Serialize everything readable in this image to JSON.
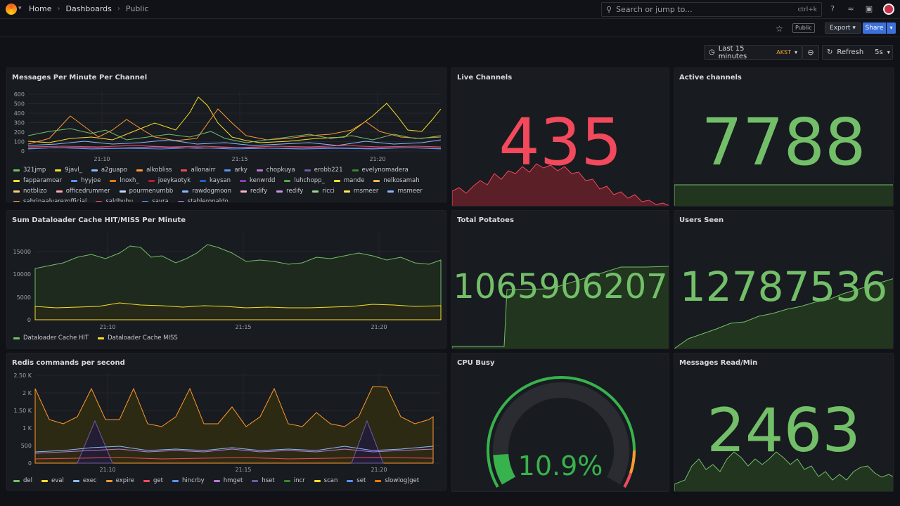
{
  "nav": {
    "crumbs": [
      "Home",
      "Dashboards",
      "Public"
    ],
    "search_placeholder": "Search or jump to...",
    "search_kbd": "ctrl+k"
  },
  "toolbar": {
    "public_tag": "Public",
    "export_label": "Export",
    "share_label": "Share"
  },
  "timepicker": {
    "range": "Last 15 minutes",
    "tz": "AKST",
    "refresh_label": "Refresh",
    "interval": "5s"
  },
  "panels": {
    "messages": {
      "title": "Messages Per Minute Per Channel",
      "y_ticks": [
        "600",
        "500",
        "400",
        "300",
        "200",
        "100",
        "0"
      ],
      "x_ticks": [
        "21:10",
        "21:15",
        "21:20"
      ],
      "legend": [
        {
          "name": "321jmp",
          "color": "#73bf69"
        },
        {
          "name": "9javl_",
          "color": "#fade2a"
        },
        {
          "name": "a2guapo",
          "color": "#8ab8ff"
        },
        {
          "name": "alkobliss",
          "color": "#ff9830"
        },
        {
          "name": "allonairr",
          "color": "#f2495c"
        },
        {
          "name": "arky",
          "color": "#5794f2"
        },
        {
          "name": "chopkuya",
          "color": "#b877d9"
        },
        {
          "name": "erobb221",
          "color": "#705da0"
        },
        {
          "name": "evelynomadera",
          "color": "#37872d"
        },
        {
          "name": "fapparamoar",
          "color": "#fade2a"
        },
        {
          "name": "hyyjoe",
          "color": "#5794f2"
        },
        {
          "name": "lnoxh_",
          "color": "#ff780a"
        },
        {
          "name": "joeykaotyk",
          "color": "#c4162a"
        },
        {
          "name": "kaysan",
          "color": "#1f60c4"
        },
        {
          "name": "kenwrdd",
          "color": "#8f3bb8"
        },
        {
          "name": "luhchopp_",
          "color": "#56a64b"
        },
        {
          "name": "mande",
          "color": "#fade2a"
        },
        {
          "name": "nelkosamah",
          "color": "#ffb357"
        },
        {
          "name": "notblizo",
          "color": "#ffcb7d"
        },
        {
          "name": "officedrummer",
          "color": "#ffa6b0"
        },
        {
          "name": "pourmenumbb",
          "color": "#c0d8ff"
        },
        {
          "name": "rawdogmoon",
          "color": "#8ab8ff"
        },
        {
          "name": "redify",
          "color": "#f7b5d0"
        },
        {
          "name": "redify",
          "color": "#ca95e5"
        },
        {
          "name": "ricci",
          "color": "#96d98d"
        },
        {
          "name": "rnsmeer",
          "color": "#ffee52"
        },
        {
          "name": "rnsmeer",
          "color": "#8ab8ff"
        },
        {
          "name": "sabrinaalvarezofficial",
          "color": "#ff9830"
        },
        {
          "name": "saldbubu",
          "color": "#f2495c"
        },
        {
          "name": "sayra",
          "color": "#5794f2"
        },
        {
          "name": "stableronaldo",
          "color": "#b877d9"
        }
      ]
    },
    "live": {
      "title": "Live Channels",
      "value": "435",
      "color": "#f2495c"
    },
    "active": {
      "title": "Active channels",
      "value": "7788",
      "color": "#73bf69"
    },
    "cache": {
      "title": "Sum Dataloader Cache HIT/MISS Per Minute",
      "y_ticks": [
        "15000",
        "10000",
        "5000",
        "0"
      ],
      "x_ticks": [
        "21:10",
        "21:15",
        "21:20"
      ],
      "legend": [
        {
          "name": "Dataloader Cache HIT",
          "color": "#73bf69"
        },
        {
          "name": "Dataloader Cache MISS",
          "color": "#fade2a"
        }
      ]
    },
    "potatoes": {
      "title": "Total Potatoes",
      "value": "1065906207",
      "color": "#73bf69"
    },
    "users": {
      "title": "Users Seen",
      "value": "12787536",
      "color": "#73bf69"
    },
    "redis": {
      "title": "Redis commands per second",
      "y_ticks": [
        "2.50 K",
        "2 K",
        "1.50 K",
        "1 K",
        "500",
        "0"
      ],
      "x_ticks": [
        "21:10",
        "21:15",
        "21:20"
      ],
      "legend": [
        {
          "name": "del",
          "color": "#73bf69"
        },
        {
          "name": "eval",
          "color": "#fade2a"
        },
        {
          "name": "exec",
          "color": "#8ab8ff"
        },
        {
          "name": "expire",
          "color": "#ff9830"
        },
        {
          "name": "get",
          "color": "#f2495c"
        },
        {
          "name": "hincrby",
          "color": "#5794f2"
        },
        {
          "name": "hmget",
          "color": "#b877d9"
        },
        {
          "name": "hset",
          "color": "#705da0"
        },
        {
          "name": "incr",
          "color": "#37872d"
        },
        {
          "name": "scan",
          "color": "#fade2a"
        },
        {
          "name": "set",
          "color": "#5794f2"
        },
        {
          "name": "slowlog|get",
          "color": "#ff780a"
        }
      ]
    },
    "cpu": {
      "title": "CPU Busy",
      "value": "10.9%",
      "percent": 10.9,
      "color": "#37b24d"
    },
    "msgread": {
      "title": "Messages Read/Min",
      "value": "2463",
      "color": "#73bf69"
    }
  }
}
